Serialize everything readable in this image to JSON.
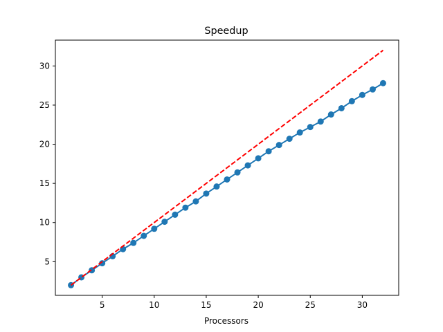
{
  "chart_data": {
    "type": "line",
    "title": "Speedup",
    "xlabel": "Processors",
    "ylabel": "",
    "xlim": [
      0.5,
      33.5
    ],
    "ylim": [
      0.7,
      33.3
    ],
    "xticks": [
      5,
      10,
      15,
      20,
      25,
      30
    ],
    "yticks": [
      5,
      10,
      15,
      20,
      25,
      30
    ],
    "grid": false,
    "legend": "none",
    "series": [
      {
        "color": "#1f77b4",
        "style": "solid",
        "marker": "circle",
        "x": [
          2,
          3,
          4,
          5,
          6,
          7,
          8,
          9,
          10,
          11,
          12,
          13,
          14,
          15,
          16,
          17,
          18,
          19,
          20,
          21,
          22,
          23,
          24,
          25,
          26,
          27,
          28,
          29,
          30,
          31,
          32
        ],
        "y": [
          2.0,
          3.0,
          3.9,
          4.8,
          5.7,
          6.6,
          7.4,
          8.3,
          9.2,
          10.1,
          11.0,
          11.9,
          12.7,
          13.7,
          14.6,
          15.5,
          16.4,
          17.3,
          18.2,
          19.1,
          19.9,
          20.7,
          21.5,
          22.2,
          22.9,
          23.8,
          24.6,
          25.5,
          26.3,
          27.0,
          27.8
        ]
      },
      {
        "color": "#ff0000",
        "style": "dashed",
        "marker": "none",
        "x": [
          2,
          32
        ],
        "y": [
          2,
          32
        ]
      }
    ]
  }
}
